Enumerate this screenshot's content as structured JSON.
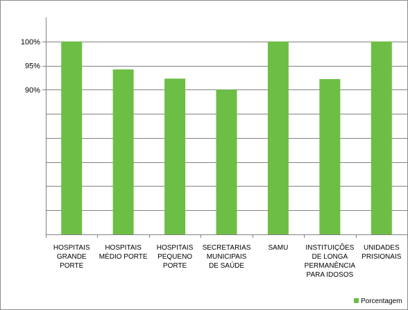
{
  "chart_data": {
    "type": "bar",
    "categories": [
      [
        "HOSPITAIS",
        "GRANDE",
        "PORTE"
      ],
      [
        "HOSPITAIS",
        "MÉDIO PORTE"
      ],
      [
        "HOSPITAIS",
        "PEQUENO",
        "PORTE"
      ],
      [
        "SECRETARIAS",
        "MUNICIPAIS",
        "DE SAÚDE"
      ],
      [
        "SAMU"
      ],
      [
        "INSTITUIÇÕES",
        "DE LONGA",
        "PERMANÊNCIA",
        "PARA IDOSOS"
      ],
      [
        "UNIDADES",
        "PRISIONAIS"
      ]
    ],
    "series": [
      {
        "name": "Porcentagem",
        "color": "#6DBE45",
        "values": [
          100,
          94.2,
          92.3,
          90.0,
          100,
          92.2,
          100
        ]
      }
    ],
    "y_tick_labels": [
      {
        "value": 100,
        "label": "100%"
      },
      {
        "value": 95,
        "label": "95%"
      },
      {
        "value": 90,
        "label": "90%"
      }
    ],
    "y_gridlines": [
      100,
      95,
      90,
      85,
      80,
      75,
      70,
      65,
      60
    ],
    "ylim": [
      60,
      105
    ],
    "grid": true,
    "legend_position": "bottom-right",
    "title": "",
    "xlabel": "",
    "ylabel": ""
  }
}
